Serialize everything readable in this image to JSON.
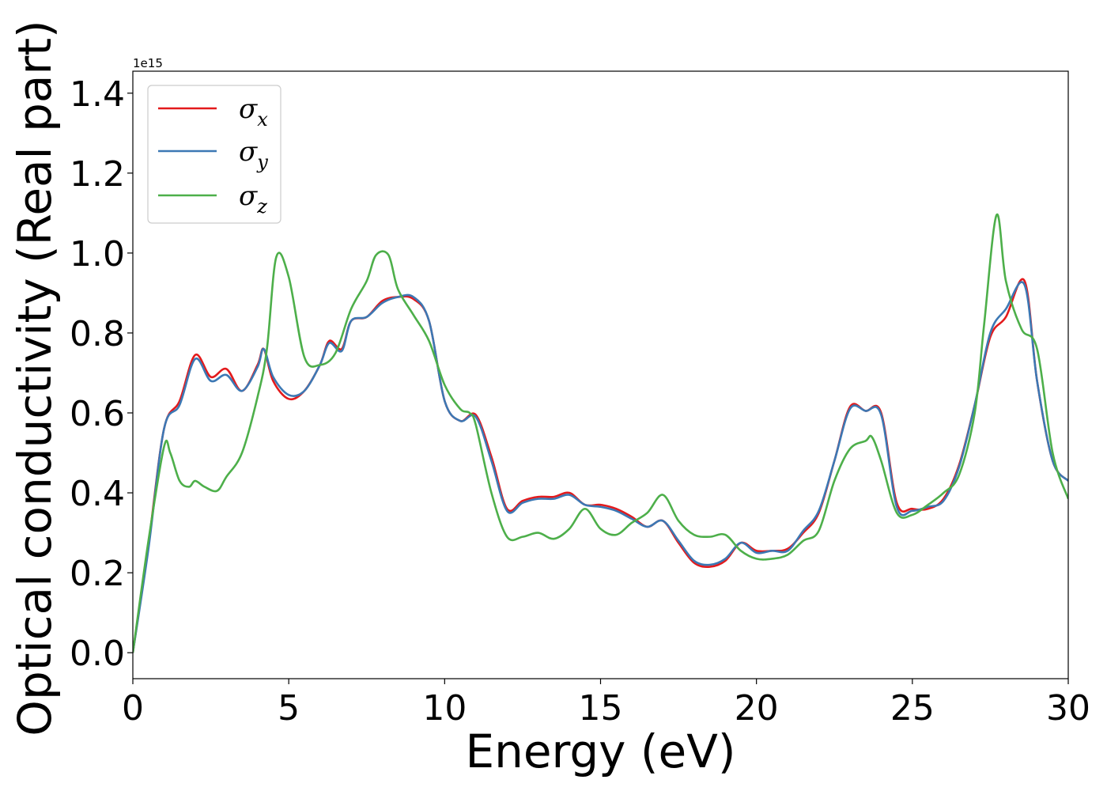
{
  "chart_data": {
    "type": "line",
    "xlabel": "Energy (eV)",
    "ylabel": "Optical conductivity (Real part)",
    "y_offset_label": "1e15",
    "xlim": [
      0,
      30
    ],
    "ylim": [
      -0.065,
      1.455
    ],
    "x_ticks": [
      0,
      5,
      10,
      15,
      20,
      25,
      30
    ],
    "x_tick_labels": [
      "0",
      "5",
      "10",
      "15",
      "20",
      "25",
      "30"
    ],
    "y_ticks": [
      0.0,
      0.2,
      0.4,
      0.6,
      0.8,
      1.0,
      1.2,
      1.4
    ],
    "y_tick_labels": [
      "0.0",
      "0.2",
      "0.4",
      "0.6",
      "0.8",
      "1.0",
      "1.2",
      "1.4"
    ],
    "grid": false,
    "legend_position": "top-left",
    "series": [
      {
        "name": "σx",
        "legend_symbol": "σ",
        "legend_subscript": "x",
        "color": "#e31a1c",
        "x": [
          0,
          0.5,
          1,
          1.5,
          2,
          2.5,
          3,
          3.5,
          4,
          4.2,
          4.5,
          5,
          5.5,
          6,
          6.3,
          6.7,
          7,
          7.5,
          8,
          8.5,
          9,
          9.5,
          10,
          10.5,
          11,
          11.5,
          12,
          12.5,
          13,
          13.5,
          14,
          14.5,
          15,
          15.5,
          16,
          16.5,
          17,
          17.5,
          18,
          18.5,
          19,
          19.5,
          20,
          20.5,
          21,
          21.5,
          22,
          22.5,
          23,
          23.5,
          24,
          24.5,
          25,
          25.5,
          26,
          26.5,
          27,
          27.5,
          28,
          28.6,
          29,
          29.5,
          30
        ],
        "y": [
          0,
          0.27,
          0.56,
          0.63,
          0.745,
          0.69,
          0.71,
          0.655,
          0.72,
          0.76,
          0.68,
          0.635,
          0.655,
          0.72,
          0.78,
          0.76,
          0.83,
          0.84,
          0.88,
          0.89,
          0.885,
          0.83,
          0.63,
          0.58,
          0.595,
          0.49,
          0.36,
          0.38,
          0.39,
          0.39,
          0.4,
          0.37,
          0.37,
          0.36,
          0.34,
          0.315,
          0.33,
          0.275,
          0.225,
          0.215,
          0.23,
          0.275,
          0.255,
          0.255,
          0.26,
          0.3,
          0.35,
          0.48,
          0.615,
          0.605,
          0.6,
          0.375,
          0.36,
          0.36,
          0.385,
          0.47,
          0.62,
          0.79,
          0.84,
          0.93,
          0.68,
          0.48,
          0.43
        ]
      },
      {
        "name": "σy",
        "legend_symbol": "σ",
        "legend_subscript": "y",
        "color": "#3c78b4",
        "x": [
          0,
          0.5,
          1,
          1.5,
          2,
          2.5,
          3,
          3.5,
          4,
          4.2,
          4.5,
          5,
          5.5,
          6,
          6.3,
          6.7,
          7,
          7.5,
          8,
          8.5,
          9,
          9.5,
          10,
          10.5,
          11,
          11.5,
          12,
          12.5,
          13,
          13.5,
          14,
          14.5,
          15,
          15.5,
          16,
          16.5,
          17,
          17.5,
          18,
          18.5,
          19,
          19.5,
          20,
          20.5,
          21,
          21.5,
          22,
          22.5,
          23,
          23.5,
          24,
          24.5,
          25,
          25.5,
          26,
          26.5,
          27,
          27.5,
          28,
          28.6,
          29,
          29.5,
          30
        ],
        "y": [
          0,
          0.26,
          0.56,
          0.62,
          0.735,
          0.68,
          0.695,
          0.655,
          0.715,
          0.76,
          0.69,
          0.645,
          0.655,
          0.72,
          0.775,
          0.755,
          0.83,
          0.84,
          0.875,
          0.89,
          0.89,
          0.83,
          0.63,
          0.58,
          0.59,
          0.48,
          0.355,
          0.375,
          0.385,
          0.385,
          0.395,
          0.37,
          0.365,
          0.355,
          0.335,
          0.315,
          0.33,
          0.28,
          0.23,
          0.22,
          0.235,
          0.275,
          0.25,
          0.255,
          0.255,
          0.305,
          0.355,
          0.48,
          0.61,
          0.605,
          0.595,
          0.365,
          0.355,
          0.365,
          0.38,
          0.465,
          0.62,
          0.8,
          0.86,
          0.92,
          0.68,
          0.48,
          0.43
        ]
      },
      {
        "name": "σz",
        "legend_symbol": "σ",
        "legend_subscript": "z",
        "color": "#4daf4a",
        "x": [
          0,
          0.5,
          1,
          1.2,
          1.5,
          1.8,
          2,
          2.3,
          2.7,
          3,
          3.5,
          4,
          4.3,
          4.6,
          5,
          5.5,
          6,
          6.5,
          7,
          7.5,
          7.8,
          8.2,
          8.5,
          9,
          9.5,
          10,
          10.5,
          10.8,
          11,
          11.5,
          12,
          12.5,
          13,
          13.5,
          14,
          14.5,
          15,
          15.5,
          16,
          16.5,
          17,
          17.5,
          18,
          18.5,
          19,
          19.5,
          20,
          20.5,
          21,
          21.5,
          22,
          22.5,
          23,
          23.5,
          23.7,
          24,
          24.5,
          25,
          25.5,
          26,
          26.5,
          27,
          27.3,
          27.7,
          28,
          28.5,
          29,
          29.5,
          30
        ],
        "y": [
          0,
          0.28,
          0.515,
          0.5,
          0.43,
          0.415,
          0.43,
          0.415,
          0.405,
          0.44,
          0.5,
          0.64,
          0.76,
          0.99,
          0.94,
          0.74,
          0.72,
          0.75,
          0.86,
          0.93,
          0.995,
          0.995,
          0.91,
          0.845,
          0.78,
          0.67,
          0.61,
          0.6,
          0.57,
          0.4,
          0.29,
          0.29,
          0.3,
          0.285,
          0.31,
          0.36,
          0.31,
          0.295,
          0.325,
          0.35,
          0.395,
          0.33,
          0.295,
          0.29,
          0.295,
          0.255,
          0.235,
          0.235,
          0.245,
          0.28,
          0.305,
          0.43,
          0.51,
          0.53,
          0.54,
          0.48,
          0.35,
          0.345,
          0.37,
          0.4,
          0.445,
          0.6,
          0.82,
          1.095,
          0.93,
          0.81,
          0.76,
          0.5,
          0.385
        ]
      }
    ]
  }
}
